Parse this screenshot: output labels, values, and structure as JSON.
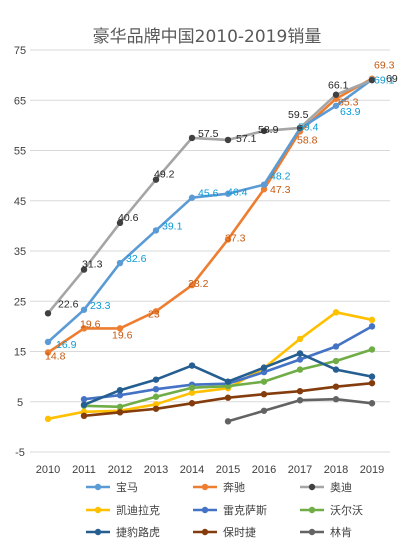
{
  "chart_data": {
    "type": "line",
    "title": "豪华品牌中国2010-2019销量",
    "xlabel": "",
    "ylabel": "",
    "x": [
      "2010",
      "2011",
      "2012",
      "2013",
      "2014",
      "2015",
      "2016",
      "2017",
      "2018",
      "2019"
    ],
    "ylim": [
      -5,
      75
    ],
    "yticks": [
      "-5",
      "5",
      "15",
      "25",
      "35",
      "45",
      "55",
      "65",
      "75"
    ],
    "grid": "horizontal",
    "legend": "bottom",
    "series": [
      {
        "name": "宝马",
        "color": "#5B9BD5",
        "label_color": "#0A9BD8",
        "values": [
          16.9,
          23.3,
          32.6,
          39.1,
          45.6,
          46.4,
          48.2,
          59.4,
          63.9,
          69.1
        ],
        "labels": [
          "16.9",
          "23.3",
          "32.6",
          "39.1",
          "45.6",
          "46.4",
          "48.2",
          "59.4",
          "63.9",
          "69.1"
        ]
      },
      {
        "name": "奔驰",
        "color": "#ED7D31",
        "label_color": "#C55A11",
        "values": [
          14.8,
          19.6,
          19.6,
          23,
          28.2,
          37.3,
          47.3,
          58.8,
          65.3,
          69.3
        ],
        "labels": [
          "14.8",
          "19.6",
          "19.6",
          "23",
          "28.2",
          "37.3",
          "47.3",
          "58.8",
          "65.3",
          "69.3"
        ]
      },
      {
        "name": "奥迪",
        "color": "#A5A5A5",
        "label_color": "#262626",
        "values": [
          22.6,
          31.3,
          40.6,
          49.2,
          57.5,
          57.1,
          58.9,
          59.5,
          66.1,
          69
        ],
        "labels": [
          "22.6",
          "31.3",
          "40.6",
          "49.2",
          "57.5",
          "57.1",
          "58.9",
          "59.5",
          "66.1",
          "69"
        ]
      },
      {
        "name": "凯迪拉克",
        "color": "#FFC000",
        "values": [
          1.6,
          3.0,
          3.2,
          4.5,
          6.8,
          7.7,
          11.7,
          17.5,
          22.8,
          21.3
        ]
      },
      {
        "name": "雷克萨斯",
        "color": "#4472C4",
        "values": [
          null,
          5.5,
          6.3,
          7.5,
          8.4,
          8.6,
          10.9,
          13.4,
          16.0,
          20.0
        ]
      },
      {
        "name": "沃尔沃",
        "color": "#70AD47",
        "values": [
          null,
          4.2,
          4.0,
          6.0,
          7.8,
          8.1,
          9.0,
          11.4,
          13.1,
          15.4
        ]
      },
      {
        "name": "捷豹路虎",
        "color": "#255E91",
        "values": [
          null,
          4.4,
          7.3,
          9.4,
          12.2,
          9.0,
          11.8,
          14.6,
          11.4,
          10.0
        ]
      },
      {
        "name": "保时捷",
        "color": "#843C0C",
        "values": [
          null,
          2.2,
          2.9,
          3.6,
          4.7,
          5.8,
          6.5,
          7.1,
          8.0,
          8.7
        ]
      },
      {
        "name": "林肯",
        "color": "#636363",
        "values": [
          null,
          null,
          null,
          null,
          null,
          1.1,
          3.2,
          5.3,
          5.5,
          4.7
        ]
      }
    ]
  }
}
